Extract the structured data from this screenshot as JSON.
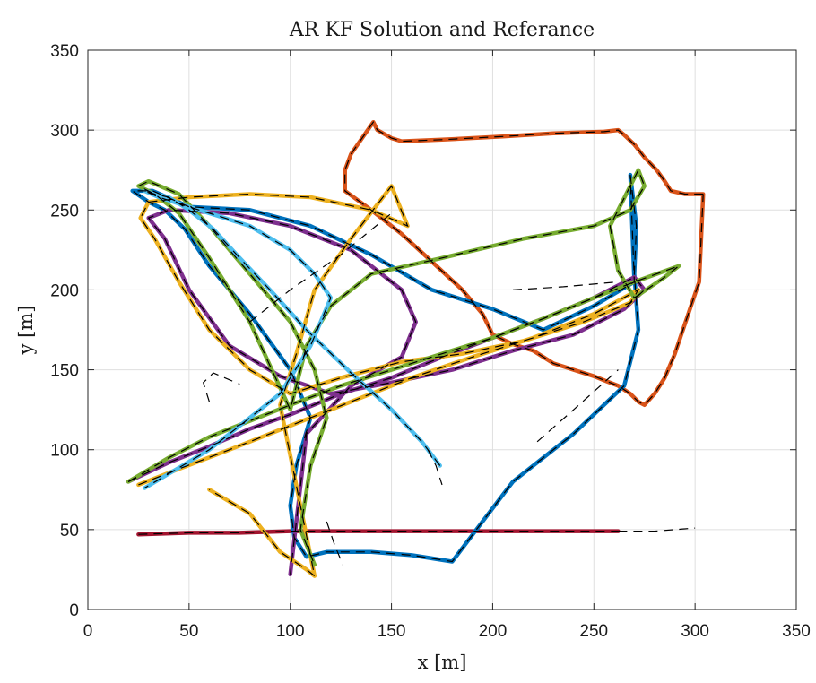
{
  "chart_data": {
    "type": "line",
    "title": "AR KF Solution and Referance",
    "xlabel": "x [m]",
    "ylabel": "y [m]",
    "xlim": [
      0,
      350
    ],
    "ylim": [
      0,
      350
    ],
    "xticks": [
      "0",
      "50",
      "100",
      "150",
      "200",
      "250",
      "300",
      "350"
    ],
    "yticks": [
      "0",
      "50",
      "100",
      "150",
      "200",
      "250",
      "300",
      "350"
    ],
    "grid": true,
    "legend": "none",
    "series": [
      {
        "color": "#D95319",
        "x": [
          304,
          295,
          288,
          285,
          281,
          275,
          270,
          265,
          262,
          255,
          230,
          205,
          175,
          155,
          150,
          143,
          141,
          130,
          127,
          127,
          140,
          155,
          168,
          185,
          195,
          200,
          210,
          220,
          225,
          230,
          240,
          250,
          256,
          262,
          268,
          272,
          275,
          280,
          285,
          290,
          294,
          298,
          302,
          304
        ],
        "y": [
          260,
          260,
          262,
          268,
          275,
          283,
          291,
          297,
          300,
          299,
          298,
          296,
          294,
          293,
          295,
          300,
          305,
          285,
          275,
          262,
          250,
          235,
          220,
          200,
          185,
          172,
          166,
          162,
          158,
          154,
          150,
          146,
          143,
          140,
          135,
          130,
          128,
          135,
          145,
          160,
          175,
          190,
          205,
          260
        ]
      },
      {
        "color": "#A2142F",
        "x": [
          25,
          50,
          75,
          100,
          125,
          150,
          175,
          200,
          225,
          245,
          262
        ],
        "y": [
          47,
          48,
          48,
          49,
          49,
          49,
          49,
          49,
          49,
          49,
          49
        ]
      },
      {
        "color": "#0072BD",
        "x": [
          268,
          271,
          270,
          272,
          265,
          240,
          210,
          195,
          180,
          160,
          140,
          118,
          108,
          102,
          100,
          103,
          110,
          100,
          80,
          60,
          48,
          38,
          30,
          22,
          32,
          50,
          80,
          110,
          140,
          170,
          200,
          225,
          250,
          270,
          268
        ],
        "y": [
          272,
          240,
          210,
          175,
          140,
          110,
          80,
          55,
          30,
          34,
          36,
          36,
          33,
          45,
          65,
          90,
          120,
          150,
          185,
          215,
          238,
          250,
          255,
          262,
          262,
          252,
          250,
          240,
          222,
          200,
          188,
          175,
          190,
          205,
          272
        ]
      },
      {
        "color": "#7E2F8E",
        "x": [
          20,
          40,
          60,
          80,
          100,
          125,
          150,
          175,
          200,
          225,
          250,
          270,
          275,
          265,
          240,
          210,
          180,
          150,
          120,
          95,
          70,
          50,
          38,
          30,
          40,
          70,
          100,
          130,
          155,
          162,
          155,
          130,
          108,
          100
        ],
        "y": [
          80,
          92,
          102,
          113,
          122,
          135,
          145,
          158,
          170,
          182,
          195,
          208,
          200,
          188,
          172,
          162,
          150,
          142,
          135,
          146,
          165,
          200,
          232,
          245,
          250,
          248,
          240,
          225,
          200,
          180,
          158,
          140,
          110,
          22
        ]
      },
      {
        "color": "#EDB120",
        "x": [
          25,
          45,
          70,
          100,
          130,
          160,
          190,
          220,
          250,
          272,
          268,
          245,
          215,
          185,
          155,
          125,
          100,
          80,
          60,
          45,
          33,
          26,
          30,
          50,
          80,
          110,
          140,
          158,
          150,
          130,
          112,
          103,
          95,
          112,
          108,
          95,
          80,
          60
        ],
        "y": [
          78,
          88,
          100,
          115,
          130,
          145,
          158,
          170,
          185,
          200,
          192,
          180,
          168,
          160,
          155,
          145,
          135,
          150,
          175,
          205,
          232,
          245,
          255,
          258,
          260,
          258,
          250,
          240,
          265,
          232,
          200,
          160,
          128,
          21,
          25,
          36,
          60,
          75
        ]
      },
      {
        "color": "#77AC30",
        "x": [
          20,
          40,
          60,
          80,
          100,
          125,
          150,
          175,
          200,
          225,
          250,
          270,
          292,
          285,
          270,
          262,
          258,
          272,
          275,
          268,
          250,
          215,
          175,
          140,
          120,
          108,
          100,
          80,
          60,
          45,
          33,
          25,
          30,
          45,
          60,
          80,
          100,
          112,
          118,
          110,
          105,
          112
        ],
        "y": [
          80,
          95,
          108,
          118,
          128,
          140,
          150,
          160,
          170,
          182,
          195,
          205,
          215,
          208,
          195,
          212,
          240,
          275,
          265,
          250,
          240,
          232,
          220,
          210,
          190,
          165,
          125,
          180,
          220,
          248,
          260,
          265,
          268,
          260,
          240,
          210,
          180,
          150,
          120,
          90,
          50,
          28
        ]
      },
      {
        "color": "#4DBEEE",
        "x": [
          174,
          165,
          150,
          130,
          108,
          90,
          75,
          62,
          50,
          40,
          33,
          28,
          35,
          55,
          80,
          100,
          112,
          120,
          110,
          95,
          80,
          60,
          40,
          28
        ],
        "y": [
          90,
          105,
          125,
          148,
          175,
          200,
          220,
          238,
          250,
          258,
          260,
          262,
          258,
          250,
          240,
          225,
          210,
          195,
          165,
          135,
          120,
          100,
          85,
          76
        ]
      },
      {
        "color": "#000000",
        "dashed": true,
        "x": [
          210,
          235,
          262
        ],
        "y": [
          200,
          202,
          205
        ]
      },
      {
        "color": "#000000",
        "dashed": true,
        "x": [
          222,
          240,
          262
        ],
        "y": [
          105,
          125,
          150
        ]
      },
      {
        "color": "#000000",
        "dashed": true,
        "x": [
          262,
          280,
          300
        ],
        "y": [
          49,
          49,
          51
        ]
      },
      {
        "color": "#000000",
        "dashed": true,
        "x": [
          80,
          100,
          125,
          150
        ],
        "y": [
          180,
          200,
          222,
          248
        ]
      },
      {
        "color": "#000000",
        "dashed": true,
        "x": [
          60,
          57,
          62,
          75
        ],
        "y": [
          130,
          142,
          148,
          141
        ]
      },
      {
        "color": "#000000",
        "dashed": true,
        "x": [
          118,
          122,
          126
        ],
        "y": [
          55,
          40,
          28
        ]
      },
      {
        "color": "#000000",
        "dashed": true,
        "x": [
          168,
          172,
          175
        ],
        "y": [
          100,
          90,
          78
        ]
      }
    ]
  }
}
